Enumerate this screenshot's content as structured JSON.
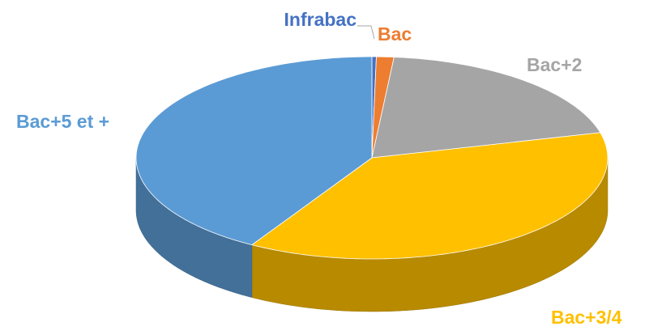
{
  "chart_data": {
    "type": "pie3d",
    "categories": [
      "Infrabac",
      "Bac",
      "Bac+2",
      "Bac+3/4",
      "Bac+5 et +"
    ],
    "values": [
      0.3,
      1.2,
      19.5,
      37.5,
      41.5
    ],
    "colors": [
      "#4472c4",
      "#ed7d31",
      "#a5a5a5",
      "#ffc000",
      "#5b9bd5"
    ]
  }
}
